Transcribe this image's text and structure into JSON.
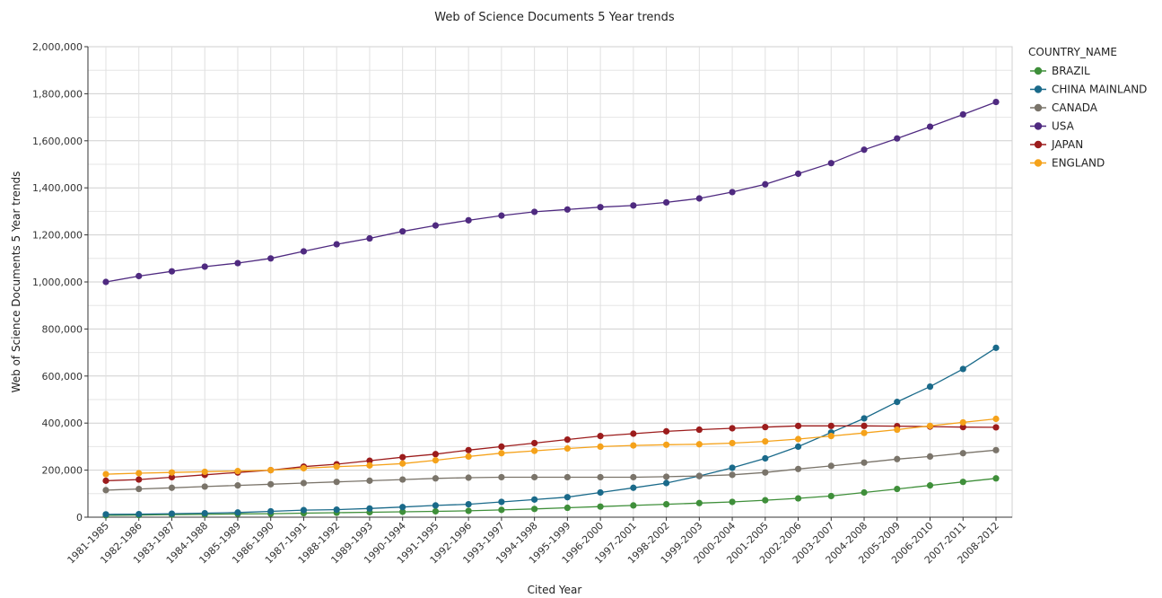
{
  "chart_data": {
    "type": "line",
    "title": "Web of Science Documents 5 Year trends",
    "xlabel": "Cited Year",
    "ylabel": "Web of Science Documents 5 Year trends",
    "ylim": [
      0,
      2000000
    ],
    "yticks": [
      0,
      200000,
      400000,
      600000,
      800000,
      1000000,
      1200000,
      1400000,
      1600000,
      1800000,
      2000000
    ],
    "ytick_labels": [
      "0",
      "200,000",
      "400,000",
      "600,000",
      "800,000",
      "1,000,000",
      "1,200,000",
      "1,400,000",
      "1,600,000",
      "1,800,000",
      "2,000,000"
    ],
    "grid": true,
    "legend_title": "COUNTRY_NAME",
    "legend_position": "right",
    "categories": [
      "1981-1985",
      "1982-1986",
      "1983-1987",
      "1984-1988",
      "1985-1989",
      "1986-1990",
      "1987-1991",
      "1988-1992",
      "1989-1993",
      "1990-1994",
      "1991-1995",
      "1992-1996",
      "1993-1997",
      "1994-1998",
      "1995-1999",
      "1996-2000",
      "1997-2001",
      "1998-2002",
      "1999-2003",
      "2000-2004",
      "2001-2005",
      "2002-2006",
      "2003-2007",
      "2004-2008",
      "2005-2009",
      "2006-2010",
      "2007-2011",
      "2008-2012"
    ],
    "series": [
      {
        "name": "BRAZIL",
        "color": "#3f8f3a",
        "values": [
          8000,
          9000,
          11000,
          12000,
          14000,
          15000,
          17000,
          19000,
          21000,
          23000,
          25000,
          27000,
          31000,
          35000,
          40000,
          45000,
          50000,
          55000,
          60000,
          65000,
          72000,
          80000,
          90000,
          105000,
          120000,
          135000,
          150000,
          165000
        ]
      },
      {
        "name": "CHINA MAINLAND",
        "color": "#1a6a8a",
        "values": [
          12000,
          13000,
          15000,
          17000,
          20000,
          25000,
          30000,
          32000,
          37000,
          43000,
          50000,
          55000,
          65000,
          75000,
          85000,
          105000,
          125000,
          145000,
          175000,
          210000,
          250000,
          300000,
          360000,
          420000,
          490000,
          555000,
          630000,
          720000
        ]
      },
      {
        "name": "CANADA",
        "color": "#7a746a",
        "values": [
          115000,
          120000,
          125000,
          130000,
          135000,
          140000,
          145000,
          150000,
          155000,
          160000,
          165000,
          168000,
          170000,
          170000,
          170000,
          170000,
          170000,
          172000,
          175000,
          180000,
          190000,
          205000,
          218000,
          232000,
          247000,
          258000,
          272000,
          285000
        ]
      },
      {
        "name": "USA",
        "color": "#4f2a80",
        "values": [
          1000000,
          1025000,
          1045000,
          1065000,
          1080000,
          1100000,
          1130000,
          1160000,
          1185000,
          1215000,
          1240000,
          1262000,
          1282000,
          1298000,
          1308000,
          1318000,
          1325000,
          1338000,
          1355000,
          1382000,
          1415000,
          1460000,
          1505000,
          1562000,
          1610000,
          1660000,
          1712000,
          1765000
        ]
      },
      {
        "name": "JAPAN",
        "color": "#9c1c1c",
        "values": [
          155000,
          160000,
          170000,
          180000,
          190000,
          200000,
          215000,
          225000,
          240000,
          255000,
          268000,
          285000,
          300000,
          315000,
          330000,
          345000,
          355000,
          365000,
          372000,
          378000,
          383000,
          388000,
          388000,
          388000,
          387000,
          385000,
          383000,
          382000
        ]
      },
      {
        "name": "ENGLAND",
        "color": "#f5a21a",
        "values": [
          183000,
          187000,
          190000,
          193000,
          196000,
          200000,
          208000,
          215000,
          220000,
          228000,
          242000,
          258000,
          272000,
          282000,
          292000,
          300000,
          305000,
          308000,
          310000,
          315000,
          322000,
          332000,
          345000,
          358000,
          372000,
          388000,
          403000,
          418000
        ]
      }
    ]
  }
}
